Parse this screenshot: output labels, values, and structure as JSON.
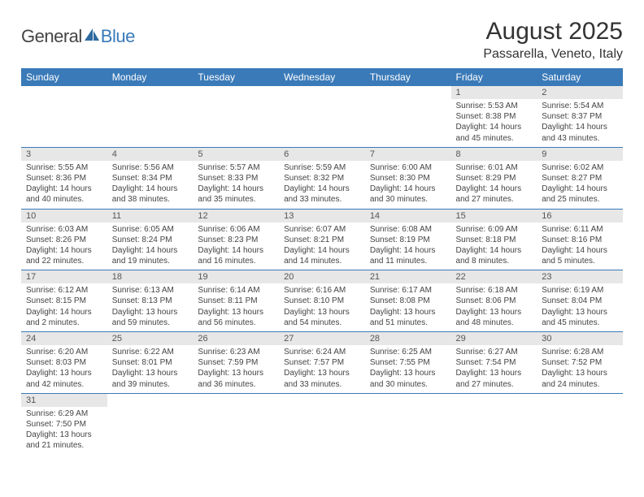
{
  "logo": {
    "general": "General",
    "blue": "Blue"
  },
  "title": "August 2025",
  "location": "Passarella, Veneto, Italy",
  "colors": {
    "header_bg": "#3a7ab8",
    "header_text": "#ffffff",
    "daynum_bg": "#e7e7e7",
    "row_border": "#3a7ab8",
    "text": "#333333"
  },
  "fonts": {
    "title_size": 30,
    "location_size": 16,
    "header_size": 12,
    "daynum_size": 11,
    "cell_size": 10
  },
  "dayHeaders": [
    "Sunday",
    "Monday",
    "Tuesday",
    "Wednesday",
    "Thursday",
    "Friday",
    "Saturday"
  ],
  "weeks": [
    [
      null,
      null,
      null,
      null,
      null,
      {
        "n": "1",
        "sunrise": "Sunrise: 5:53 AM",
        "sunset": "Sunset: 8:38 PM",
        "day1": "Daylight: 14 hours",
        "day2": "and 45 minutes."
      },
      {
        "n": "2",
        "sunrise": "Sunrise: 5:54 AM",
        "sunset": "Sunset: 8:37 PM",
        "day1": "Daylight: 14 hours",
        "day2": "and 43 minutes."
      }
    ],
    [
      {
        "n": "3",
        "sunrise": "Sunrise: 5:55 AM",
        "sunset": "Sunset: 8:36 PM",
        "day1": "Daylight: 14 hours",
        "day2": "and 40 minutes."
      },
      {
        "n": "4",
        "sunrise": "Sunrise: 5:56 AM",
        "sunset": "Sunset: 8:34 PM",
        "day1": "Daylight: 14 hours",
        "day2": "and 38 minutes."
      },
      {
        "n": "5",
        "sunrise": "Sunrise: 5:57 AM",
        "sunset": "Sunset: 8:33 PM",
        "day1": "Daylight: 14 hours",
        "day2": "and 35 minutes."
      },
      {
        "n": "6",
        "sunrise": "Sunrise: 5:59 AM",
        "sunset": "Sunset: 8:32 PM",
        "day1": "Daylight: 14 hours",
        "day2": "and 33 minutes."
      },
      {
        "n": "7",
        "sunrise": "Sunrise: 6:00 AM",
        "sunset": "Sunset: 8:30 PM",
        "day1": "Daylight: 14 hours",
        "day2": "and 30 minutes."
      },
      {
        "n": "8",
        "sunrise": "Sunrise: 6:01 AM",
        "sunset": "Sunset: 8:29 PM",
        "day1": "Daylight: 14 hours",
        "day2": "and 27 minutes."
      },
      {
        "n": "9",
        "sunrise": "Sunrise: 6:02 AM",
        "sunset": "Sunset: 8:27 PM",
        "day1": "Daylight: 14 hours",
        "day2": "and 25 minutes."
      }
    ],
    [
      {
        "n": "10",
        "sunrise": "Sunrise: 6:03 AM",
        "sunset": "Sunset: 8:26 PM",
        "day1": "Daylight: 14 hours",
        "day2": "and 22 minutes."
      },
      {
        "n": "11",
        "sunrise": "Sunrise: 6:05 AM",
        "sunset": "Sunset: 8:24 PM",
        "day1": "Daylight: 14 hours",
        "day2": "and 19 minutes."
      },
      {
        "n": "12",
        "sunrise": "Sunrise: 6:06 AM",
        "sunset": "Sunset: 8:23 PM",
        "day1": "Daylight: 14 hours",
        "day2": "and 16 minutes."
      },
      {
        "n": "13",
        "sunrise": "Sunrise: 6:07 AM",
        "sunset": "Sunset: 8:21 PM",
        "day1": "Daylight: 14 hours",
        "day2": "and 14 minutes."
      },
      {
        "n": "14",
        "sunrise": "Sunrise: 6:08 AM",
        "sunset": "Sunset: 8:19 PM",
        "day1": "Daylight: 14 hours",
        "day2": "and 11 minutes."
      },
      {
        "n": "15",
        "sunrise": "Sunrise: 6:09 AM",
        "sunset": "Sunset: 8:18 PM",
        "day1": "Daylight: 14 hours",
        "day2": "and 8 minutes."
      },
      {
        "n": "16",
        "sunrise": "Sunrise: 6:11 AM",
        "sunset": "Sunset: 8:16 PM",
        "day1": "Daylight: 14 hours",
        "day2": "and 5 minutes."
      }
    ],
    [
      {
        "n": "17",
        "sunrise": "Sunrise: 6:12 AM",
        "sunset": "Sunset: 8:15 PM",
        "day1": "Daylight: 14 hours",
        "day2": "and 2 minutes."
      },
      {
        "n": "18",
        "sunrise": "Sunrise: 6:13 AM",
        "sunset": "Sunset: 8:13 PM",
        "day1": "Daylight: 13 hours",
        "day2": "and 59 minutes."
      },
      {
        "n": "19",
        "sunrise": "Sunrise: 6:14 AM",
        "sunset": "Sunset: 8:11 PM",
        "day1": "Daylight: 13 hours",
        "day2": "and 56 minutes."
      },
      {
        "n": "20",
        "sunrise": "Sunrise: 6:16 AM",
        "sunset": "Sunset: 8:10 PM",
        "day1": "Daylight: 13 hours",
        "day2": "and 54 minutes."
      },
      {
        "n": "21",
        "sunrise": "Sunrise: 6:17 AM",
        "sunset": "Sunset: 8:08 PM",
        "day1": "Daylight: 13 hours",
        "day2": "and 51 minutes."
      },
      {
        "n": "22",
        "sunrise": "Sunrise: 6:18 AM",
        "sunset": "Sunset: 8:06 PM",
        "day1": "Daylight: 13 hours",
        "day2": "and 48 minutes."
      },
      {
        "n": "23",
        "sunrise": "Sunrise: 6:19 AM",
        "sunset": "Sunset: 8:04 PM",
        "day1": "Daylight: 13 hours",
        "day2": "and 45 minutes."
      }
    ],
    [
      {
        "n": "24",
        "sunrise": "Sunrise: 6:20 AM",
        "sunset": "Sunset: 8:03 PM",
        "day1": "Daylight: 13 hours",
        "day2": "and 42 minutes."
      },
      {
        "n": "25",
        "sunrise": "Sunrise: 6:22 AM",
        "sunset": "Sunset: 8:01 PM",
        "day1": "Daylight: 13 hours",
        "day2": "and 39 minutes."
      },
      {
        "n": "26",
        "sunrise": "Sunrise: 6:23 AM",
        "sunset": "Sunset: 7:59 PM",
        "day1": "Daylight: 13 hours",
        "day2": "and 36 minutes."
      },
      {
        "n": "27",
        "sunrise": "Sunrise: 6:24 AM",
        "sunset": "Sunset: 7:57 PM",
        "day1": "Daylight: 13 hours",
        "day2": "and 33 minutes."
      },
      {
        "n": "28",
        "sunrise": "Sunrise: 6:25 AM",
        "sunset": "Sunset: 7:55 PM",
        "day1": "Daylight: 13 hours",
        "day2": "and 30 minutes."
      },
      {
        "n": "29",
        "sunrise": "Sunrise: 6:27 AM",
        "sunset": "Sunset: 7:54 PM",
        "day1": "Daylight: 13 hours",
        "day2": "and 27 minutes."
      },
      {
        "n": "30",
        "sunrise": "Sunrise: 6:28 AM",
        "sunset": "Sunset: 7:52 PM",
        "day1": "Daylight: 13 hours",
        "day2": "and 24 minutes."
      }
    ],
    [
      {
        "n": "31",
        "sunrise": "Sunrise: 6:29 AM",
        "sunset": "Sunset: 7:50 PM",
        "day1": "Daylight: 13 hours",
        "day2": "and 21 minutes."
      },
      null,
      null,
      null,
      null,
      null,
      null
    ]
  ]
}
